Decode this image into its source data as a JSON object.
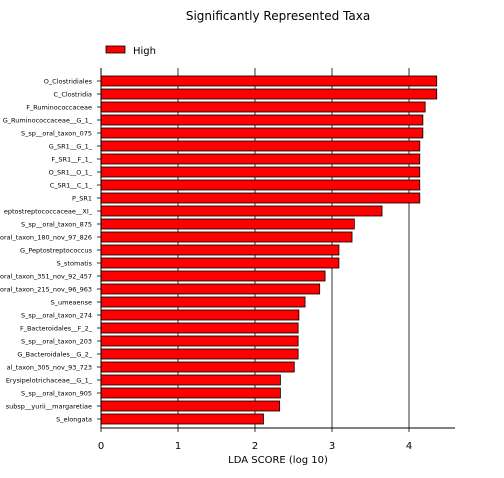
{
  "chart_data": {
    "type": "bar",
    "orientation": "horizontal",
    "title": "Significantly Represented Taxa",
    "xlabel": "LDA SCORE (log 10)",
    "ylabel": "",
    "xlim": [
      0,
      4.8
    ],
    "xticks": [
      0,
      1,
      2,
      3,
      4
    ],
    "grid": "vertical",
    "legend": {
      "placement": "top-left",
      "entries": [
        {
          "name": "High",
          "color": "#ff0000"
        }
      ]
    },
    "colors": {
      "bar_fill": "#ff0000",
      "bar_edge": "#000000"
    },
    "categories": [
      "O_Clostridiales",
      "C_Clostridia",
      "F_Ruminococcaceae",
      "G_Ruminococcaceae__G_1_",
      "S_sp__oral_taxon_075",
      "G_SR1__G_1_",
      "F_SR1__F_1_",
      "O_SR1__O_1_",
      "C_SR1__C_1_",
      "P_SR1",
      "eptostreptococcaceae__XI_",
      "S_sp__oral_taxon_875",
      "oral_taxon_180_nov_97_826",
      "G_Peptostreptococcus",
      "S_stomatis",
      "oral_taxon_351_nov_92_457",
      "oral_taxon_215_nov_96_963",
      "S_umeaense",
      "S_sp__oral_taxon_274",
      "F_Bacteroidales__F_2_",
      "S_sp__oral_taxon_203",
      "G_Bacteroidales__G_2_",
      "al_taxon_305_nov_93_723",
      "Erysipelotrichaceae__G_1_",
      "S_sp__oral_taxon_905",
      "subsp__yurii__margaretiae",
      "S_elongata"
    ],
    "series": [
      {
        "name": "High",
        "values": [
          4.36,
          4.36,
          4.21,
          4.18,
          4.18,
          4.14,
          4.14,
          4.14,
          4.14,
          4.14,
          3.65,
          3.29,
          3.26,
          3.09,
          3.09,
          2.91,
          2.84,
          2.65,
          2.57,
          2.56,
          2.56,
          2.56,
          2.51,
          2.33,
          2.33,
          2.32,
          2.11
        ]
      }
    ]
  }
}
